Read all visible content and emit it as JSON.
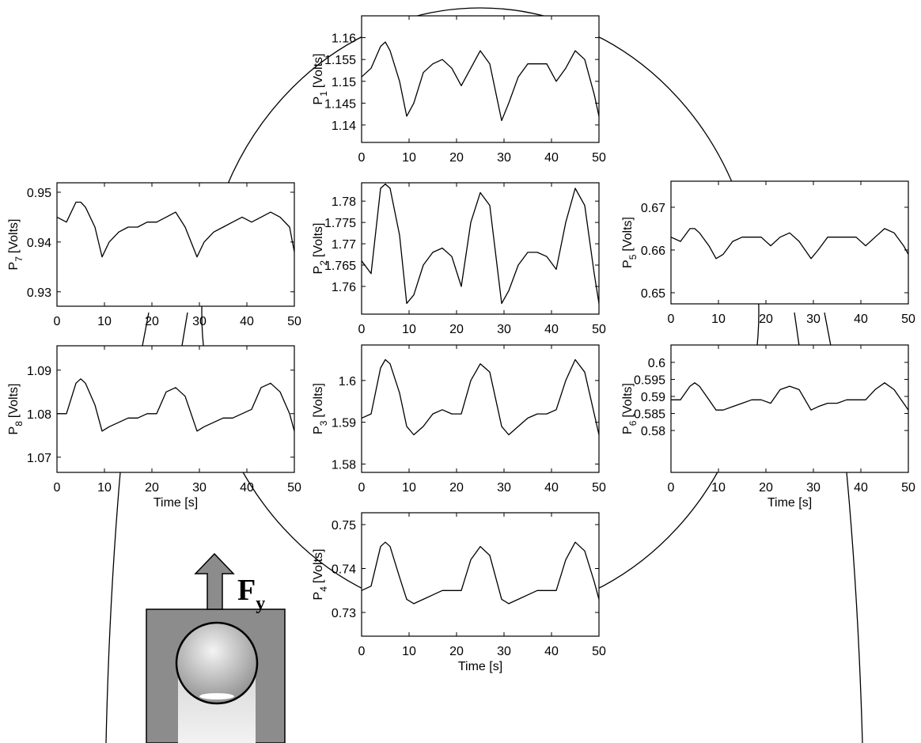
{
  "chart_data": [
    {
      "type": "line",
      "ylabel": {
        "symbol": "P",
        "subscript": "1",
        "unit": "[Volts]"
      },
      "x": [
        0,
        2,
        4,
        5,
        6,
        8,
        9.5,
        11,
        13,
        15,
        17,
        19,
        21,
        23,
        25,
        27,
        29.5,
        31,
        33,
        35,
        37,
        39,
        41,
        43,
        45,
        47,
        49,
        50
      ],
      "values": [
        1.151,
        1.153,
        1.158,
        1.159,
        1.157,
        1.15,
        1.142,
        1.145,
        1.152,
        1.154,
        1.155,
        1.153,
        1.149,
        1.153,
        1.157,
        1.154,
        1.141,
        1.145,
        1.151,
        1.154,
        1.154,
        1.154,
        1.15,
        1.153,
        1.157,
        1.155,
        1.147,
        1.142
      ],
      "xlim": [
        0,
        50
      ],
      "xticks": [
        0,
        10,
        20,
        30,
        40,
        50
      ],
      "ylim": [
        1.136,
        1.165
      ],
      "yticks": [
        1.14,
        1.145,
        1.15,
        1.155,
        1.16
      ],
      "color": "#000000"
    },
    {
      "type": "line",
      "ylabel": {
        "symbol": "P",
        "subscript": "2",
        "unit": "[Volts]"
      },
      "x": [
        0,
        2,
        4,
        5,
        6,
        8,
        9.5,
        11,
        13,
        15,
        17,
        19,
        21,
        23,
        25,
        27,
        29.5,
        31,
        33,
        35,
        37,
        39,
        41,
        43,
        45,
        47,
        49,
        50
      ],
      "values": [
        1.766,
        1.763,
        1.783,
        1.784,
        1.783,
        1.772,
        1.756,
        1.758,
        1.765,
        1.768,
        1.769,
        1.767,
        1.76,
        1.775,
        1.782,
        1.779,
        1.756,
        1.759,
        1.765,
        1.768,
        1.768,
        1.767,
        1.764,
        1.775,
        1.783,
        1.779,
        1.763,
        1.756
      ],
      "xlim": [
        0,
        50
      ],
      "xticks": [
        0,
        10,
        20,
        30,
        40,
        50
      ],
      "ylim": [
        1.7535,
        1.7843
      ],
      "yticks": [
        1.76,
        1.765,
        1.77,
        1.775,
        1.78
      ],
      "color": "#000000"
    },
    {
      "type": "line",
      "ylabel": {
        "symbol": "P",
        "subscript": "3",
        "unit": "[Volts]"
      },
      "x": [
        0,
        2,
        4,
        5,
        6,
        8,
        9.5,
        11,
        13,
        15,
        17,
        19,
        21,
        23,
        25,
        27,
        29.5,
        31,
        33,
        35,
        37,
        39,
        41,
        43,
        45,
        47,
        49,
        50
      ],
      "values": [
        1.591,
        1.592,
        1.603,
        1.605,
        1.604,
        1.597,
        1.589,
        1.587,
        1.589,
        1.592,
        1.593,
        1.592,
        1.592,
        1.6,
        1.604,
        1.602,
        1.589,
        1.587,
        1.589,
        1.591,
        1.592,
        1.592,
        1.593,
        1.6,
        1.605,
        1.602,
        1.592,
        1.587
      ],
      "xlim": [
        0,
        50
      ],
      "xticks": [
        0,
        10,
        20,
        30,
        40,
        50
      ],
      "ylim": [
        1.578,
        1.6085
      ],
      "yticks": [
        1.58,
        1.59,
        1.6
      ],
      "color": "#000000"
    },
    {
      "type": "line",
      "ylabel": {
        "symbol": "P",
        "subscript": "4",
        "unit": "[Volts]"
      },
      "xlabel": "Time [s]",
      "x": [
        0,
        2,
        4,
        5,
        6,
        8,
        9.5,
        11,
        13,
        15,
        17,
        19,
        21,
        23,
        25,
        27,
        29.5,
        31,
        33,
        35,
        37,
        39,
        41,
        43,
        45,
        47,
        49,
        50
      ],
      "values": [
        0.735,
        0.736,
        0.745,
        0.746,
        0.745,
        0.738,
        0.733,
        0.732,
        0.733,
        0.734,
        0.735,
        0.735,
        0.735,
        0.742,
        0.745,
        0.743,
        0.733,
        0.732,
        0.733,
        0.734,
        0.735,
        0.735,
        0.735,
        0.742,
        0.746,
        0.744,
        0.737,
        0.733
      ],
      "xlim": [
        0,
        50
      ],
      "xticks": [
        0,
        10,
        20,
        30,
        40,
        50
      ],
      "ylim": [
        0.7246,
        0.7527
      ],
      "yticks": [
        0.73,
        0.74,
        0.75
      ],
      "color": "#000000"
    },
    {
      "type": "line",
      "ylabel": {
        "symbol": "P",
        "subscript": "5",
        "unit": "[Volts]"
      },
      "x": [
        0,
        2,
        4,
        5,
        6,
        8,
        9.5,
        11,
        13,
        15,
        17,
        19,
        21,
        23,
        25,
        27,
        29.5,
        31,
        33,
        35,
        37,
        39,
        41,
        43,
        45,
        47,
        49,
        50
      ],
      "values": [
        0.663,
        0.662,
        0.665,
        0.665,
        0.664,
        0.661,
        0.658,
        0.659,
        0.662,
        0.663,
        0.663,
        0.663,
        0.661,
        0.663,
        0.664,
        0.662,
        0.658,
        0.66,
        0.663,
        0.663,
        0.663,
        0.663,
        0.661,
        0.663,
        0.665,
        0.664,
        0.661,
        0.659
      ],
      "xlim": [
        0,
        50
      ],
      "xticks": [
        0,
        10,
        20,
        30,
        40,
        50
      ],
      "ylim": [
        0.6474,
        0.6761
      ],
      "yticks": [
        0.65,
        0.66,
        0.67
      ],
      "color": "#000000"
    },
    {
      "type": "line",
      "ylabel": {
        "symbol": "P",
        "subscript": "6",
        "unit": "[Volts]"
      },
      "xlabel": "Time [s]",
      "x": [
        0,
        2,
        4,
        5,
        6,
        8,
        9.5,
        11,
        13,
        15,
        17,
        19,
        21,
        23,
        25,
        27,
        29.5,
        31,
        33,
        35,
        37,
        39,
        41,
        43,
        45,
        47,
        49,
        50
      ],
      "values": [
        0.589,
        0.589,
        0.593,
        0.594,
        0.593,
        0.589,
        0.586,
        0.586,
        0.587,
        0.588,
        0.589,
        0.589,
        0.588,
        0.592,
        0.593,
        0.592,
        0.586,
        0.587,
        0.588,
        0.588,
        0.589,
        0.589,
        0.589,
        0.592,
        0.594,
        0.592,
        0.588,
        0.586
      ],
      "xlim": [
        0,
        50
      ],
      "xticks": [
        0,
        10,
        20,
        30,
        40,
        50
      ],
      "ylim": [
        0.5677,
        0.6051
      ],
      "yticks": [
        0.58,
        0.585,
        0.59,
        0.595,
        0.6
      ],
      "color": "#000000"
    },
    {
      "type": "line",
      "ylabel": {
        "symbol": "P",
        "subscript": "7",
        "unit": "[Volts]"
      },
      "x": [
        0,
        2,
        4,
        5,
        6,
        8,
        9.5,
        11,
        13,
        15,
        17,
        19,
        21,
        23,
        25,
        27,
        29.5,
        31,
        33,
        35,
        37,
        39,
        41,
        43,
        45,
        47,
        49,
        50
      ],
      "values": [
        0.945,
        0.944,
        0.948,
        0.948,
        0.947,
        0.943,
        0.937,
        0.94,
        0.942,
        0.943,
        0.943,
        0.944,
        0.944,
        0.945,
        0.946,
        0.943,
        0.937,
        0.94,
        0.942,
        0.943,
        0.944,
        0.945,
        0.944,
        0.945,
        0.946,
        0.945,
        0.943,
        0.938
      ],
      "xlim": [
        0,
        50
      ],
      "xticks": [
        0,
        10,
        20,
        30,
        40,
        50
      ],
      "ylim": [
        0.9271,
        0.9519
      ],
      "yticks": [
        0.93,
        0.94,
        0.95
      ],
      "color": "#000000"
    },
    {
      "type": "line",
      "ylabel": {
        "symbol": "P",
        "subscript": "8",
        "unit": "[Volts]"
      },
      "xlabel": "Time [s]",
      "x": [
        0,
        2,
        4,
        5,
        6,
        8,
        9.5,
        11,
        13,
        15,
        17,
        19,
        21,
        23,
        25,
        27,
        29.5,
        31,
        33,
        35,
        37,
        39,
        41,
        43,
        45,
        47,
        49,
        50
      ],
      "values": [
        1.08,
        1.08,
        1.087,
        1.088,
        1.087,
        1.082,
        1.076,
        1.077,
        1.078,
        1.079,
        1.079,
        1.08,
        1.08,
        1.085,
        1.086,
        1.084,
        1.076,
        1.077,
        1.078,
        1.079,
        1.079,
        1.08,
        1.081,
        1.086,
        1.087,
        1.085,
        1.08,
        1.076
      ],
      "xlim": [
        0,
        50
      ],
      "xticks": [
        0,
        10,
        20,
        30,
        40,
        50
      ],
      "ylim": [
        1.0665,
        1.0956
      ],
      "yticks": [
        1.07,
        1.08,
        1.09
      ],
      "color": "#000000"
    }
  ],
  "force_label": {
    "symbol": "F",
    "subscript": "y"
  }
}
